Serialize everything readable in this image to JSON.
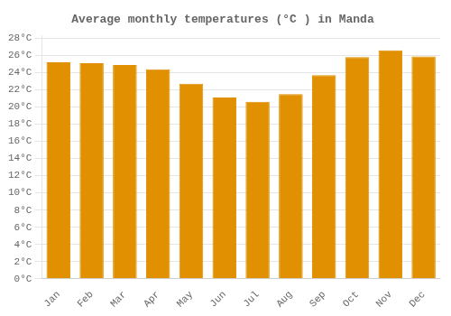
{
  "chart_data": {
    "type": "bar",
    "title": "Average monthly temperatures (°C ) in Manda",
    "categories": [
      "Jan",
      "Feb",
      "Mar",
      "Apr",
      "May",
      "Jun",
      "Jul",
      "Aug",
      "Sep",
      "Oct",
      "Nov",
      "Dec"
    ],
    "values": [
      25.2,
      25.1,
      24.9,
      24.4,
      22.7,
      21.1,
      20.6,
      21.5,
      23.7,
      25.8,
      26.6,
      25.9
    ],
    "color": "#E09000",
    "ylim": [
      0,
      28.3
    ],
    "yticks": [
      {
        "value": 0,
        "label": "0°C"
      },
      {
        "value": 2,
        "label": "2°C"
      },
      {
        "value": 4,
        "label": "4°C"
      },
      {
        "value": 6,
        "label": "6°C"
      },
      {
        "value": 8,
        "label": "8°C"
      },
      {
        "value": 10,
        "label": "10°C"
      },
      {
        "value": 12,
        "label": "12°C"
      },
      {
        "value": 14,
        "label": "14°C"
      },
      {
        "value": 16,
        "label": "16°C"
      },
      {
        "value": 18,
        "label": "18°C"
      },
      {
        "value": 20,
        "label": "20°C"
      },
      {
        "value": 22,
        "label": "22°C"
      },
      {
        "value": 24,
        "label": "24°C"
      },
      {
        "value": 26,
        "label": "26°C"
      },
      {
        "value": 28,
        "label": "28°C"
      }
    ],
    "grid": true
  }
}
